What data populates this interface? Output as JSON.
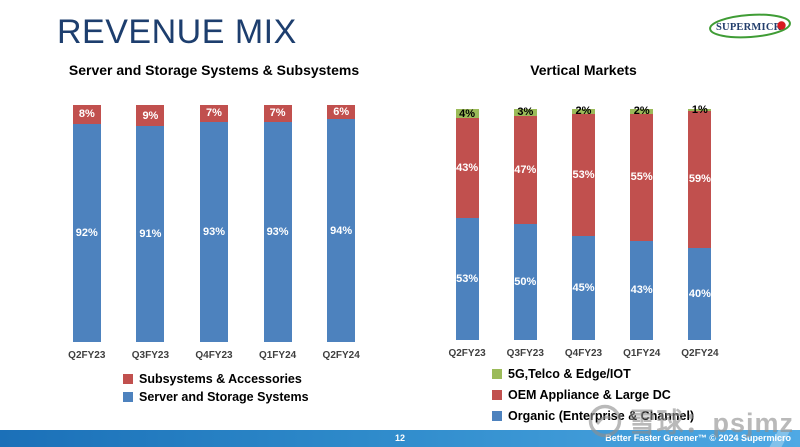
{
  "slide": {
    "title": "REVENUE MIX",
    "logo_text": "SUPERMICR",
    "page_number": "12",
    "footer_tagline": "Better Faster Greener™  © 2024 Supermicro",
    "watermark_text": "雪球：psjmz"
  },
  "colors": {
    "title_navy": "#1d3e6e",
    "bar_blue": "#4d82be",
    "bar_red": "#c1504e",
    "bar_green": "#9bbb59",
    "logo_green": "#3f9c35",
    "logo_red": "#d71920",
    "footer_blue_left": "#1b70b8",
    "footer_blue_right": "#4fa9e4"
  },
  "chart_data": [
    {
      "type": "bar",
      "stacked": true,
      "title": "Server and Storage Systems & Subsystems",
      "categories": [
        "Q2FY23",
        "Q3FY23",
        "Q4FY23",
        "Q1FY24",
        "Q2FY24"
      ],
      "series": [
        {
          "name": "Subsystems & Accessories",
          "color": "#c1504e",
          "label_color": "#ffffff",
          "values": [
            8,
            9,
            7,
            7,
            6
          ]
        },
        {
          "name": "Server and Storage Systems",
          "color": "#4d82be",
          "label_color": "#ffffff",
          "values": [
            92,
            91,
            93,
            93,
            94
          ]
        }
      ],
      "value_labels": "percent",
      "ylim": [
        0,
        100
      ],
      "grid": false,
      "legend_position": "bottom"
    },
    {
      "type": "bar",
      "stacked": true,
      "title": "Vertical Markets",
      "categories": [
        "Q2FY23",
        "Q3FY23",
        "Q4FY23",
        "Q1FY24",
        "Q2FY24"
      ],
      "series": [
        {
          "name": "5G,Telco & Edge/IOT",
          "color": "#9bbb59",
          "label_color": "#000000",
          "values": [
            4,
            3,
            2,
            2,
            1
          ]
        },
        {
          "name": "OEM Appliance & Large DC",
          "color": "#c1504e",
          "label_color": "#ffffff",
          "values": [
            43,
            47,
            53,
            55,
            59
          ]
        },
        {
          "name": "Organic (Enterprise & Channel)",
          "color": "#4d82be",
          "label_color": "#ffffff",
          "values": [
            53,
            50,
            45,
            43,
            40
          ]
        }
      ],
      "value_labels": "percent",
      "ylim": [
        0,
        100
      ],
      "grid": false,
      "legend_position": "bottom"
    }
  ]
}
